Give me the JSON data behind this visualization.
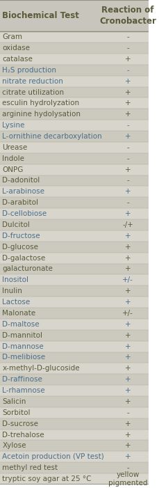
{
  "title_col1": "Biochemical Test",
  "title_col2": "Reaction of\nCronobacter",
  "rows": [
    [
      "Gram",
      "-"
    ],
    [
      "oxidase",
      "-"
    ],
    [
      "catalase",
      "+"
    ],
    [
      "H₂S production",
      "-"
    ],
    [
      "nitrate reduction",
      "+"
    ],
    [
      "citrate utilization",
      "+"
    ],
    [
      "esculin hydrolyzation",
      "+"
    ],
    [
      "arginine hydolysation",
      "+"
    ],
    [
      "Lysine",
      "-"
    ],
    [
      "L-ornithine decarboxylation",
      "+"
    ],
    [
      "Urease",
      "-"
    ],
    [
      "Indole",
      "-"
    ],
    [
      "ONPG",
      "+"
    ],
    [
      "D-adonitol",
      "-"
    ],
    [
      "L-arabinose",
      "+"
    ],
    [
      "D-arabitol",
      "-"
    ],
    [
      "D-cellobiose",
      "+"
    ],
    [
      "Dulcitol",
      "-/+"
    ],
    [
      "D-fructose",
      "+"
    ],
    [
      "D-glucose",
      "+"
    ],
    [
      "D-galactose",
      "+"
    ],
    [
      "galacturonate",
      "+"
    ],
    [
      "Inositol",
      "+/-"
    ],
    [
      "Inulin",
      "+"
    ],
    [
      "Lactose",
      "+"
    ],
    [
      "Malonate",
      "+/-"
    ],
    [
      "D-maltose",
      "+"
    ],
    [
      "D-mannitol",
      "+"
    ],
    [
      "D-mannose",
      "+"
    ],
    [
      "D-melibiose",
      "+"
    ],
    [
      "x-methyl-D-glucoside",
      "+"
    ],
    [
      "D-raffinose",
      "+"
    ],
    [
      "L-rhamnose",
      "+"
    ],
    [
      "Salicin",
      "+"
    ],
    [
      "Sorbitol",
      "-"
    ],
    [
      "D-sucrose",
      "+"
    ],
    [
      "D-trehalose",
      "+"
    ],
    [
      "Xylose",
      "+"
    ],
    [
      "Acetoin production (VP test)",
      "+"
    ],
    [
      "methyl red test",
      "-"
    ],
    [
      "tryptic soy agar at 25 °C",
      "yellow\npigmented"
    ]
  ],
  "bg_color_odd": "#d8d5cc",
  "bg_color_even": "#ccc9bf",
  "header_bg": "#c8c5bc",
  "text_color_normal": "#5a5a3a",
  "text_color_blue": "#4a6e8a",
  "blue_rows": [
    3,
    4,
    8,
    9,
    14,
    16,
    18,
    22,
    24,
    26,
    28,
    29,
    31,
    32,
    38
  ],
  "font_size": 7.5,
  "header_font_size": 8.5
}
